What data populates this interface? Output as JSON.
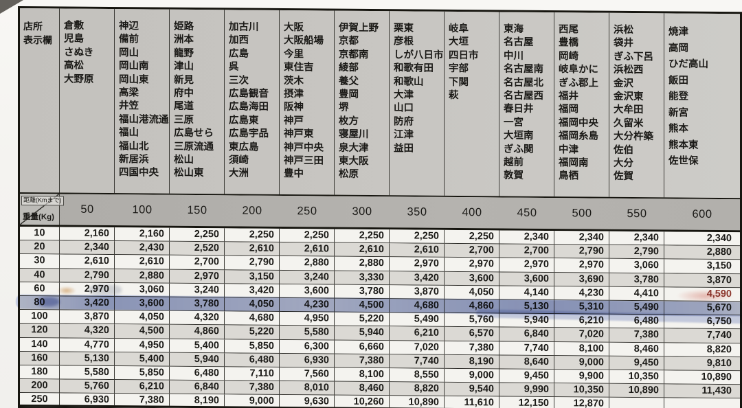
{
  "table": {
    "office_column_header": {
      "line1": "店所",
      "line2": "表示欄"
    },
    "corner": {
      "distance_label": "距離(Kmまで)",
      "weight_label": "重量(Kg)"
    },
    "highlighted_weight": "80",
    "colors": {
      "highlighter_blue": "#5b74c4",
      "stain_red": "#d65a4b",
      "stain_orange": "#c97f2a",
      "paper_gray": "#c6c4c0",
      "header_gray": "#b2b0ac",
      "row_stripe": "#dbd9d4"
    },
    "distance_columns": [
      {
        "distance": "50",
        "offices": [
          "倉敷",
          "児島",
          "さぬき",
          "高松",
          "大野原"
        ]
      },
      {
        "distance": "100",
        "offices": [
          "神辺",
          "備前",
          "岡山",
          "岡山南",
          "岡山東",
          "高梁",
          "井笠",
          "福山港流通",
          "福山",
          "福山北",
          "新居浜",
          "四国中央"
        ]
      },
      {
        "distance": "150",
        "offices": [
          "姫路",
          "洲本",
          "龍野",
          "津山",
          "新見",
          "府中",
          "尾道",
          "三原",
          "広島せら",
          "三原流通",
          "松山",
          "松山東"
        ]
      },
      {
        "distance": "200",
        "offices": [
          "加古川",
          "加西",
          "広島",
          "呉",
          "三次",
          "広島観音",
          "広島海田",
          "広島東",
          "広島宇品",
          "東広島",
          "須崎",
          "大洲"
        ]
      },
      {
        "distance": "250",
        "offices": [
          "大阪",
          "大阪船場",
          "今里",
          "東住吉",
          "茨木",
          "摂津",
          "阪神",
          "神戸",
          "神戸東",
          "神戸中央",
          "神戸三田",
          "豊中"
        ]
      },
      {
        "distance": "300",
        "offices": [
          "伊賀上野",
          "京都",
          "京都南",
          "綾部",
          "養父",
          "豊岡",
          "堺",
          "枚方",
          "寝屋川",
          "泉大津",
          "東大阪",
          "松原"
        ]
      },
      {
        "distance": "350",
        "offices": [
          "栗東",
          "彦根",
          "しが八日市",
          "和歌有田",
          "和歌山",
          "大津",
          "山口",
          "防府",
          "江津",
          "益田"
        ]
      },
      {
        "distance": "400",
        "offices": [
          "岐阜",
          "大垣",
          "四日市",
          "宇部",
          "下関",
          "萩"
        ]
      },
      {
        "distance": "450",
        "offices": [
          "東海",
          "名古屋",
          "中川",
          "名古屋南",
          "名古屋北",
          "名古屋西",
          "春日井",
          "一宮",
          "大垣南",
          "ぎふ関",
          "越前",
          "敦賀"
        ]
      },
      {
        "distance": "500",
        "offices": [
          "西尾",
          "豊橋",
          "岡崎",
          "岐阜かに",
          "ぎふ郡上",
          "福井",
          "福岡",
          "福岡中央",
          "福岡糸島",
          "中津",
          "福岡南",
          "鳥栖"
        ]
      },
      {
        "distance": "550",
        "offices": [
          "浜松",
          "袋井",
          "ぎふ下呂",
          "浜松西",
          "金沢",
          "金沢東",
          "大牟田",
          "久留米",
          "大分杵築",
          "佐伯",
          "大分",
          "佐賀"
        ]
      },
      {
        "distance": "600",
        "offices": [
          "焼津",
          "高岡",
          "ひだ高山",
          "飯田",
          "能登",
          "新宮",
          "熊本",
          "熊本東",
          "佐世保"
        ]
      }
    ],
    "weight_rows": [
      {
        "weight": "10",
        "values": [
          "2,160",
          "2,160",
          "2,250",
          "2,250",
          "2,250",
          "2,250",
          "2,250",
          "2,250",
          "2,340",
          "2,340",
          "2,340",
          "2,340"
        ]
      },
      {
        "weight": "20",
        "values": [
          "2,340",
          "2,430",
          "2,520",
          "2,610",
          "2,610",
          "2,610",
          "2,610",
          "2,700",
          "2,700",
          "2,790",
          "2,790",
          "2,880"
        ]
      },
      {
        "weight": "30",
        "values": [
          "2,610",
          "2,610",
          "2,700",
          "2,790",
          "2,880",
          "2,880",
          "2,970",
          "2,970",
          "2,970",
          "2,970",
          "3,060",
          "3,150"
        ]
      },
      {
        "weight": "40",
        "values": [
          "2,790",
          "2,880",
          "2,970",
          "3,150",
          "3,240",
          "3,330",
          "3,420",
          "3,600",
          "3,600",
          "3,690",
          "3,780",
          "3,870"
        ]
      },
      {
        "weight": "60",
        "values": [
          "2,970",
          "3,060",
          "3,240",
          "3,420",
          "3,600",
          "3,780",
          "3,870",
          "4,050",
          "4,140",
          "4,230",
          "4,410",
          "4,590"
        ]
      },
      {
        "weight": "80",
        "values": [
          "3,420",
          "3,600",
          "3,780",
          "4,050",
          "4,230",
          "4,500",
          "4,680",
          "4,860",
          "5,130",
          "5,310",
          "5,490",
          "5,670"
        ]
      },
      {
        "weight": "100",
        "values": [
          "3,870",
          "4,050",
          "4,320",
          "4,680",
          "4,950",
          "5,220",
          "5,490",
          "5,760",
          "5,940",
          "6,210",
          "6,480",
          "6,750"
        ]
      },
      {
        "weight": "120",
        "values": [
          "4,320",
          "4,500",
          "4,860",
          "5,220",
          "5,580",
          "5,940",
          "6,210",
          "6,570",
          "6,840",
          "7,020",
          "7,380",
          "7,740"
        ]
      },
      {
        "weight": "140",
        "values": [
          "4,770",
          "4,950",
          "5,400",
          "5,850",
          "6,300",
          "6,660",
          "7,020",
          "7,380",
          "7,740",
          "8,100",
          "8,460",
          "8,820"
        ]
      },
      {
        "weight": "160",
        "values": [
          "5,130",
          "5,400",
          "5,940",
          "6,480",
          "6,930",
          "7,380",
          "7,740",
          "8,190",
          "8,640",
          "9,000",
          "9,450",
          "9,810"
        ]
      },
      {
        "weight": "180",
        "values": [
          "5,580",
          "5,850",
          "6,480",
          "7,110",
          "7,560",
          "8,100",
          "8,550",
          "9,000",
          "9,450",
          "9,900",
          "10,350",
          "10,890"
        ]
      },
      {
        "weight": "200",
        "values": [
          "5,760",
          "6,210",
          "6,840",
          "7,380",
          "8,010",
          "8,460",
          "8,820",
          "9,540",
          "9,990",
          "10,350",
          "10,890",
          "11,430"
        ]
      },
      {
        "weight": "250",
        "values": [
          "6,930",
          "7,380",
          "8,190",
          "9,000",
          "9,630",
          "10,260",
          "10,890",
          "11,610",
          "12,150",
          "12,870",
          "",
          ""
        ]
      }
    ]
  }
}
